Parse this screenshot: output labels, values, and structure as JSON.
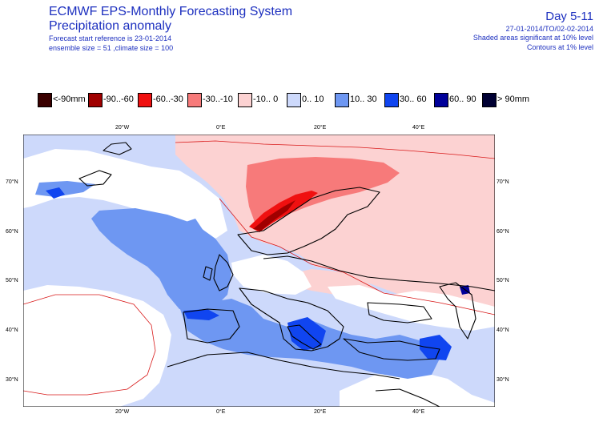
{
  "header": {
    "system_title": "ECMWF EPS-Monthly Forecasting System",
    "product": "Precipitation anomaly",
    "start_ref": "Forecast start reference is 23-01-2014",
    "ensemble": "ensemble size = 51 ,climate size = 100",
    "day_range": "Day 5-11",
    "period": "27-01-2014/TO/02-02-2014",
    "shaded_note": "Shaded areas significant at 10% level",
    "contour_note": "Contours at 1% level"
  },
  "legend": [
    {
      "label": "<-90mm",
      "color": "#3a0000"
    },
    {
      "label": "-90..-60",
      "color": "#a00000"
    },
    {
      "label": "-60..-30",
      "color": "#f01010"
    },
    {
      "label": "-30..-10",
      "color": "#f77a7a"
    },
    {
      "label": "-10.. 0",
      "color": "#fcd2d2"
    },
    {
      "label": "0.. 10",
      "color": "#cdd9fb"
    },
    {
      "label": "10.. 30",
      "color": "#6e97f2"
    },
    {
      "label": "30.. 60",
      "color": "#1045f0"
    },
    {
      "label": "60.. 90",
      "color": "#00009a"
    },
    {
      "label": "> 90mm",
      "color": "#000033"
    }
  ],
  "axes": {
    "lon_labels": [
      "20°W",
      "0°E",
      "20°E",
      "40°E"
    ],
    "lat_labels": [
      "70°N",
      "60°N",
      "50°N",
      "40°N",
      "30°N"
    ]
  }
}
